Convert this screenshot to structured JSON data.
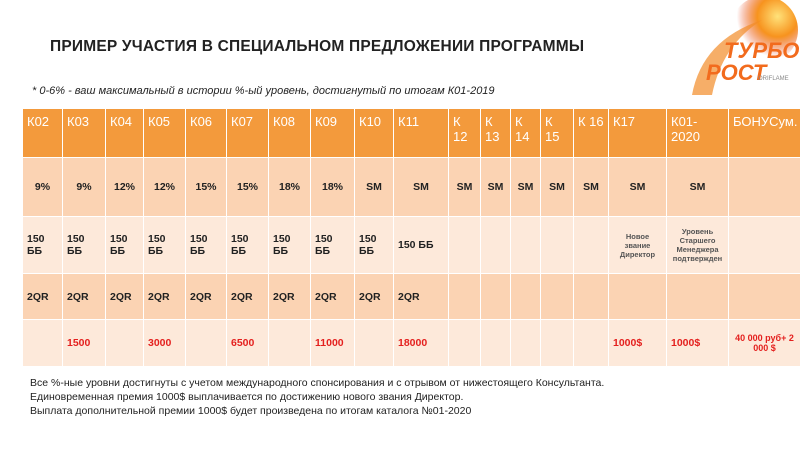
{
  "header": {
    "title": "ПРИМЕР УЧАСТИЯ В СПЕЦИАЛЬНОМ ПРЕДЛОЖЕНИИ ПРОГРАММЫ",
    "note": "* 0-6% - ваш максимальный в истории %-ый уровень, достигнутый по итогам К01-2019"
  },
  "logo": {
    "line1": "ТУРБО",
    "line2": "РОСТ",
    "brand": "ORIFLAME"
  },
  "table": {
    "columns": [
      "К02",
      "К03",
      "К04",
      "К05",
      "К06",
      "К07",
      "К08",
      "К09",
      "К10",
      "К11",
      "К 12",
      "К 13",
      "К 14",
      "К 15",
      "К 16",
      "К17",
      "К01-2020",
      "БОНУСум."
    ],
    "rows": [
      [
        "9%",
        "9%",
        "12%",
        "12%",
        "15%",
        "15%",
        "18%",
        "18%",
        "SM",
        "SM",
        "SM",
        "SM",
        "SM",
        "SM",
        "SM",
        "SM",
        "SM",
        null
      ],
      [
        "150 ББ",
        "150 ББ",
        "150 ББ",
        "150 ББ",
        "150 ББ",
        "150 ББ",
        "150 ББ",
        "150 ББ",
        "150 ББ",
        "150 ББ",
        null,
        null,
        null,
        null,
        null,
        "Новое звание Директор",
        "Уровень Старшего Менеджера подтвержден",
        null
      ],
      [
        "2QR",
        "2QR",
        "2QR",
        "2QR",
        "2QR",
        "2QR",
        "2QR",
        "2QR",
        "2QR",
        "2QR",
        null,
        null,
        null,
        null,
        null,
        null,
        null,
        null
      ],
      [
        null,
        1500,
        null,
        3000,
        null,
        6500,
        null,
        11000,
        null,
        18000,
        null,
        null,
        null,
        null,
        null,
        "1000$",
        "1000$",
        "40 000 руб+ 2 000 $"
      ]
    ]
  },
  "footer": [
    "Все %-ные уровни достигнуты с учетом международного спонсирования и с отрывом от нижестоящего Консультанта.",
    "Единовременная премия 1000$ выплачивается по достижению нового звания Директор.",
    "Выплата дополнительной премии 1000$  будет произведена по итогам каталога №01-2020"
  ]
}
